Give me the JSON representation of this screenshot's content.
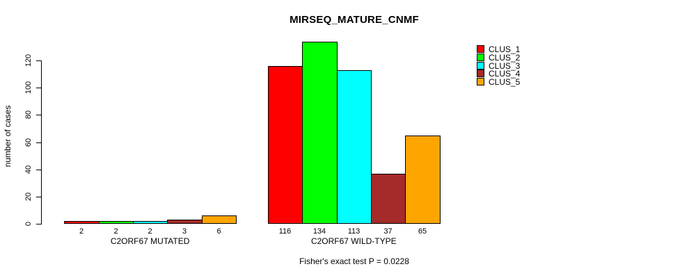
{
  "page": {
    "background": "#ffffff",
    "text_color": "#000000"
  },
  "chart_data": {
    "type": "bar",
    "title": "MIRSEQ_MATURE_CNMF",
    "xlabel": "",
    "ylabel": "number of cases",
    "ylim": [
      0,
      120
    ],
    "yticks": [
      0,
      20,
      40,
      60,
      80,
      100,
      120
    ],
    "grid": false,
    "bar_borders": true,
    "show_bar_values": true,
    "legend_position": "top-right",
    "categories": [
      "C2ORF67 MUTATED",
      "C2ORF67 WILD-TYPE"
    ],
    "series": [
      {
        "name": "CLUS_1",
        "color": "#FF0000",
        "values": [
          2,
          116
        ]
      },
      {
        "name": "CLUS_2",
        "color": "#00FF00",
        "values": [
          2,
          134
        ]
      },
      {
        "name": "CLUS_3",
        "color": "#00FFFF",
        "values": [
          2,
          113
        ]
      },
      {
        "name": "CLUS_4",
        "color": "#A52A2A",
        "values": [
          3,
          37
        ]
      },
      {
        "name": "CLUS_5",
        "color": "#FFA500",
        "values": [
          6,
          65
        ]
      }
    ],
    "footnote": "Fisher's exact test P = 0.0228"
  }
}
